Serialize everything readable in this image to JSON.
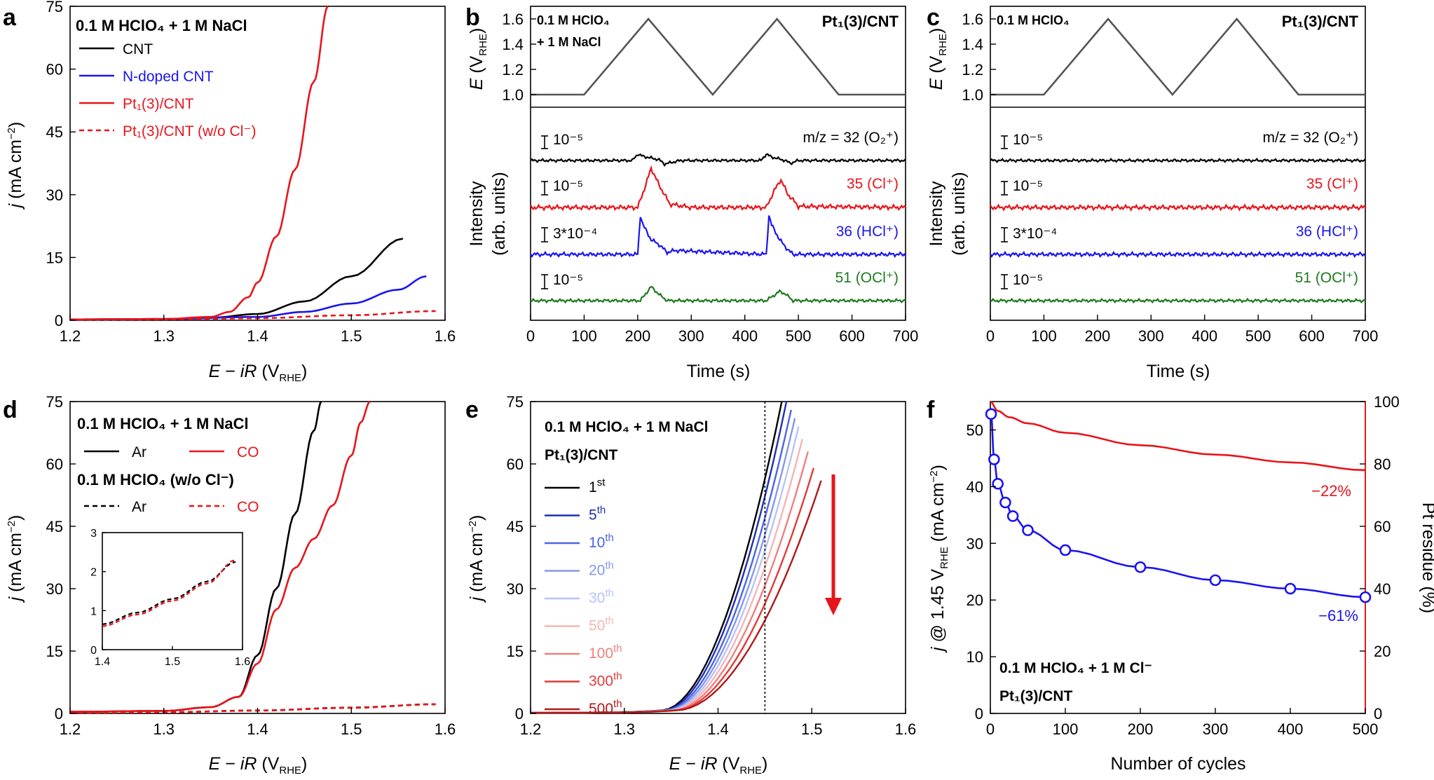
{
  "panels": {
    "a": {
      "label": "a",
      "condition": "0.1 M HClO₄ + 1 M NaCl"
    },
    "b": {
      "label": "b",
      "condition_l1": "0.1 M HClO₄",
      "condition_l2": "+ 1 M NaCl",
      "catalyst": "Pt₁(3)/CNT"
    },
    "c": {
      "label": "c",
      "condition": "0.1 M HClO₄",
      "catalyst": "Pt₁(3)/CNT"
    },
    "d": {
      "label": "d",
      "condition1": "0.1 M HClO₄ + 1 M NaCl",
      "condition2": "0.1 M HClO₄ (w/o Cl⁻)"
    },
    "e": {
      "label": "e",
      "condition": "0.1 M HClO₄ + 1 M NaCl",
      "catalyst": "Pt₁(3)/CNT"
    },
    "f": {
      "label": "f",
      "condition": "0.1 M HClO₄ + 1 M Cl⁻",
      "catalyst": "Pt₁(3)/CNT",
      "pct_j": "−61%",
      "pct_pt": "−22%"
    }
  },
  "ms_channels": [
    {
      "scale": "10⁻⁵",
      "label": "m/z = 32 (O₂⁺)",
      "color": "#000000"
    },
    {
      "scale": "10⁻⁵",
      "label": "35 (Cl⁺)",
      "color": "#e8141b"
    },
    {
      "scale": "3*10⁻⁴",
      "label": "36 (HCl⁺)",
      "color": "#1a14f0"
    },
    {
      "scale": "10⁻⁵",
      "label": "51 (OCl⁺)",
      "color": "#1e7a1e"
    }
  ],
  "chart_data": [
    {
      "id": "a",
      "type": "line",
      "xlabel": "E − iR (V_RHE)",
      "ylabel": "j (mA cm⁻²)",
      "xlim": [
        1.2,
        1.6
      ],
      "ylim": [
        0,
        75
      ],
      "xticks": [
        "1.2",
        "1.3",
        "1.4",
        "1.5",
        "1.6"
      ],
      "yticks": [
        "0",
        "15",
        "30",
        "45",
        "60",
        "75"
      ],
      "series": [
        {
          "name": "CNT",
          "color": "#000000",
          "dash": false,
          "x": [
            1.2,
            1.3,
            1.35,
            1.4,
            1.45,
            1.5,
            1.555
          ],
          "y": [
            0.2,
            0.3,
            0.6,
            1.5,
            4.5,
            10.5,
            19.5
          ]
        },
        {
          "name": "N-doped CNT",
          "color": "#1a14f0",
          "dash": false,
          "x": [
            1.2,
            1.3,
            1.4,
            1.45,
            1.5,
            1.55,
            1.58
          ],
          "y": [
            0.2,
            0.3,
            0.8,
            2.0,
            4.0,
            7.3,
            10.5
          ]
        },
        {
          "name": "Pt₁(3)/CNT",
          "color": "#e8141b",
          "dash": false,
          "x": [
            1.2,
            1.3,
            1.35,
            1.37,
            1.39,
            1.4,
            1.42,
            1.44,
            1.46,
            1.475
          ],
          "y": [
            0.2,
            0.3,
            0.8,
            2.0,
            5.5,
            9.0,
            20.0,
            36.0,
            57.0,
            75.0
          ]
        },
        {
          "name": "Pt₁(3)/CNT (w/o Cl⁻)",
          "color": "#e8141b",
          "dash": true,
          "x": [
            1.2,
            1.3,
            1.4,
            1.5,
            1.59
          ],
          "y": [
            0.1,
            0.2,
            0.5,
            1.2,
            2.2
          ]
        }
      ]
    },
    {
      "id": "b",
      "type": "line",
      "xlabel": "Time (s)",
      "ylabel_top": "E (V_RHE)",
      "ylabel_bottom": "Intensity (arb. units)",
      "xlim": [
        0,
        700
      ],
      "ylim_top": [
        0.9,
        1.7
      ],
      "xticks": [
        "0",
        "100",
        "200",
        "300",
        "400",
        "500",
        "600",
        "700"
      ],
      "yticks_top": [
        "1.0",
        "1.2",
        "1.4",
        "1.6"
      ],
      "potential": {
        "x": [
          0,
          100,
          220,
          340,
          460,
          575,
          700
        ],
        "y": [
          1.0,
          1.0,
          1.6,
          1.0,
          1.6,
          1.0,
          1.0
        ]
      },
      "signals": [
        {
          "name": "m/z = 32",
          "x": [
            0,
            190,
            200,
            210,
            240,
            250,
            280,
            430,
            440,
            450,
            475,
            485,
            500,
            700
          ],
          "y": [
            0,
            0,
            0.9,
            0.6,
            0.1,
            -0.5,
            0,
            0,
            0.9,
            0.5,
            0,
            -0.4,
            0,
            0
          ]
        },
        {
          "name": "35",
          "x": [
            0,
            200,
            215,
            225,
            240,
            260,
            300,
            440,
            455,
            467,
            480,
            500,
            700
          ],
          "y": [
            0,
            0,
            2.0,
            3.5,
            2.0,
            0.3,
            0,
            0,
            1.5,
            2.5,
            1.2,
            0.1,
            0
          ]
        },
        {
          "name": "36",
          "x": [
            0,
            200,
            205,
            210,
            225,
            240,
            255,
            270,
            440,
            445,
            450,
            465,
            480,
            490,
            700
          ],
          "y": [
            0,
            0,
            4.0,
            3.0,
            1.5,
            1.0,
            0.2,
            0.4,
            0,
            4.0,
            3.0,
            1.5,
            0.5,
            0,
            0
          ]
        },
        {
          "name": "51",
          "x": [
            0,
            205,
            225,
            240,
            255,
            440,
            465,
            475,
            490,
            700
          ],
          "y": [
            0,
            0,
            1.8,
            0.8,
            0,
            0,
            1.2,
            0.9,
            0,
            0
          ]
        }
      ]
    },
    {
      "id": "c",
      "type": "line",
      "xlabel": "Time (s)",
      "ylabel_top": "E (V_RHE)",
      "ylabel_bottom": "Intensity (arb. units)",
      "xlim": [
        0,
        700
      ],
      "ylim_top": [
        0.9,
        1.7
      ],
      "xticks": [
        "0",
        "100",
        "200",
        "300",
        "400",
        "500",
        "600",
        "700"
      ],
      "yticks_top": [
        "1.0",
        "1.2",
        "1.4",
        "1.6"
      ],
      "potential": {
        "x": [
          0,
          100,
          220,
          340,
          460,
          575,
          700
        ],
        "y": [
          1.0,
          1.0,
          1.6,
          1.0,
          1.6,
          1.0,
          1.0
        ]
      }
    },
    {
      "id": "d",
      "type": "line",
      "xlabel": "E − iR (V_RHE)",
      "ylabel": "j (mA cm⁻²)",
      "xlim": [
        1.2,
        1.6
      ],
      "ylim": [
        0,
        75
      ],
      "xticks": [
        "1.2",
        "1.3",
        "1.4",
        "1.5",
        "1.6"
      ],
      "yticks": [
        "0",
        "15",
        "30",
        "45",
        "60",
        "75"
      ],
      "series": [
        {
          "name": "Ar",
          "color": "#000000",
          "dash": false,
          "x": [
            1.2,
            1.3,
            1.35,
            1.38,
            1.4,
            1.42,
            1.44,
            1.46,
            1.468
          ],
          "y": [
            0.4,
            0.6,
            1.5,
            4.0,
            14.0,
            30.0,
            48.0,
            68.0,
            75.0
          ]
        },
        {
          "name": "CO",
          "color": "#e8141b",
          "dash": false,
          "x": [
            1.2,
            1.3,
            1.35,
            1.38,
            1.4,
            1.42,
            1.44,
            1.46,
            1.48,
            1.5,
            1.51,
            1.52
          ],
          "y": [
            0.4,
            0.6,
            1.5,
            4.0,
            12.0,
            25.0,
            35.0,
            42.0,
            50.0,
            62.0,
            70.0,
            75.0
          ]
        },
        {
          "name": "Ar (w/o Cl⁻)",
          "color": "#000000",
          "dash": true,
          "x": [
            1.2,
            1.3,
            1.4,
            1.5,
            1.59
          ],
          "y": [
            0.1,
            0.3,
            0.7,
            1.4,
            2.2
          ]
        },
        {
          "name": "CO (w/o Cl⁻)",
          "color": "#e8141b",
          "dash": true,
          "x": [
            1.2,
            1.3,
            1.4,
            1.5,
            1.59
          ],
          "y": [
            0.1,
            0.3,
            0.68,
            1.35,
            2.2
          ]
        }
      ],
      "inset": {
        "xlim": [
          1.4,
          1.6
        ],
        "ylim": [
          0,
          3
        ],
        "xticks": [
          "1.4",
          "1.5",
          "1.6"
        ],
        "yticks": [
          "0",
          "1",
          "2",
          "3"
        ],
        "series": [
          {
            "name": "Ar",
            "color": "#000000",
            "x": [
              1.4,
              1.45,
              1.5,
              1.55,
              1.59
            ],
            "y": [
              0.65,
              0.95,
              1.3,
              1.75,
              2.25
            ]
          },
          {
            "name": "CO",
            "color": "#e8141b",
            "x": [
              1.4,
              1.45,
              1.5,
              1.55,
              1.59
            ],
            "y": [
              0.6,
              0.9,
              1.25,
              1.7,
              2.3
            ]
          }
        ]
      }
    },
    {
      "id": "e",
      "type": "line",
      "xlabel": "E − iR (V_RHE)",
      "ylabel": "j (mA cm⁻²)",
      "xlim": [
        1.2,
        1.6
      ],
      "ylim": [
        0,
        75
      ],
      "xticks": [
        "1.2",
        "1.3",
        "1.4",
        "1.5",
        "1.6"
      ],
      "yticks": [
        "0",
        "15",
        "30",
        "45",
        "60",
        "75"
      ],
      "marker_x": 1.45,
      "series": [
        {
          "name": "1st",
          "color": "#000000",
          "onset": 1.34,
          "end_x": 1.468,
          "end_y": 75
        },
        {
          "name": "5th",
          "color": "#1f2fb4",
          "onset": 1.342,
          "end_x": 1.473,
          "end_y": 75
        },
        {
          "name": "10th",
          "color": "#4b64e6",
          "onset": 1.344,
          "end_x": 1.478,
          "end_y": 73
        },
        {
          "name": "20th",
          "color": "#8597ee",
          "onset": 1.346,
          "end_x": 1.482,
          "end_y": 71
        },
        {
          "name": "30th",
          "color": "#b8c3f4",
          "onset": 1.348,
          "end_x": 1.486,
          "end_y": 69
        },
        {
          "name": "50th",
          "color": "#f6b4b4",
          "onset": 1.35,
          "end_x": 1.49,
          "end_y": 66
        },
        {
          "name": "100th",
          "color": "#ef7f7f",
          "onset": 1.352,
          "end_x": 1.496,
          "end_y": 63
        },
        {
          "name": "300th",
          "color": "#e23a3a",
          "onset": 1.354,
          "end_x": 1.502,
          "end_y": 59
        },
        {
          "name": "500th",
          "color": "#b01818",
          "onset": 1.356,
          "end_x": 1.51,
          "end_y": 56
        }
      ]
    },
    {
      "id": "f",
      "type": "line",
      "xlabel": "Number of cycles",
      "ylabel": "j @ 1.45 V_RHE (mA cm⁻²)",
      "ylabel_right": "Pt residue (%)",
      "xlim": [
        0,
        500
      ],
      "ylim": [
        0,
        55
      ],
      "ylim_right": [
        0,
        100
      ],
      "xticks": [
        "0",
        "100",
        "200",
        "300",
        "400",
        "500"
      ],
      "yticks": [
        "0",
        "10",
        "20",
        "30",
        "40",
        "50"
      ],
      "yticks_right": [
        "0",
        "20",
        "40",
        "60",
        "80",
        "100"
      ],
      "series": [
        {
          "name": "j @ 1.45 V_RHE",
          "color": "#1a14f0",
          "x": [
            1,
            5,
            10,
            20,
            30,
            50,
            100,
            200,
            300,
            400,
            500
          ],
          "y": [
            52.8,
            44.8,
            40.5,
            37.2,
            34.8,
            32.3,
            28.8,
            25.8,
            23.5,
            22.0,
            20.5
          ]
        },
        {
          "name": "Pt residue",
          "color": "#e8141b",
          "axis": "right",
          "x": [
            0,
            10,
            25,
            50,
            100,
            200,
            300,
            400,
            500
          ],
          "y": [
            100,
            97,
            95,
            93,
            90,
            86,
            83,
            80.5,
            78
          ]
        }
      ]
    }
  ]
}
